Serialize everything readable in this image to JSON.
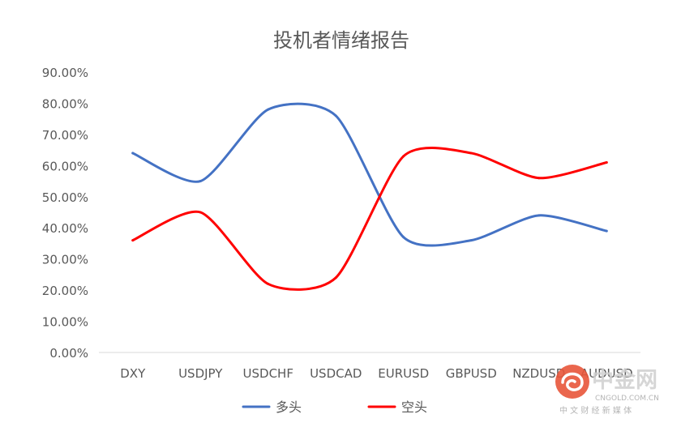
{
  "chart_data": {
    "type": "line",
    "title": "投机者情绪报告",
    "categories": [
      "DXY",
      "USDJPY",
      "USDCHF",
      "USDCAD",
      "EURUSD",
      "GBPUSD",
      "NZDUSD",
      "AUDUSD"
    ],
    "series": [
      {
        "name": "多头",
        "color": "#4472c4",
        "values": [
          0.64,
          0.55,
          0.78,
          0.76,
          0.37,
          0.36,
          0.44,
          0.39
        ]
      },
      {
        "name": "空头",
        "color": "#ff0000",
        "values": [
          0.36,
          0.45,
          0.22,
          0.24,
          0.63,
          0.64,
          0.56,
          0.61
        ]
      }
    ],
    "ylim": [
      0,
      0.9
    ],
    "yticks": [
      0,
      0.1,
      0.2,
      0.3,
      0.4,
      0.5,
      0.6,
      0.7,
      0.8,
      0.9
    ],
    "ytick_labels": [
      "0.00%",
      "10.00%",
      "20.00%",
      "30.00%",
      "40.00%",
      "50.00%",
      "60.00%",
      "70.00%",
      "80.00%",
      "90.00%"
    ],
    "grid": false,
    "legend_position": "bottom"
  },
  "watermark": {
    "brand": "中金网",
    "domain": "CNGOLD.COM.CN",
    "tagline": "中 文 财 经 新 媒 体",
    "brand_color": "#cfcfcf",
    "logo_color": "#e8553a"
  }
}
